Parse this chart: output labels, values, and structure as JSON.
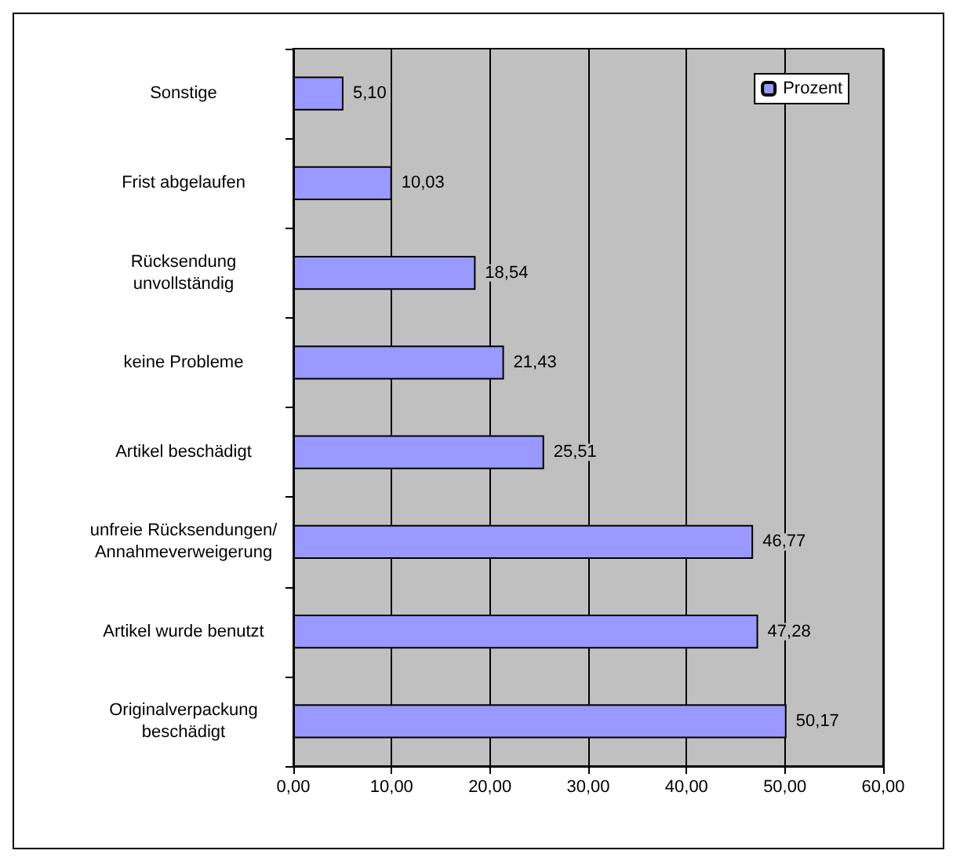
{
  "chart_data": {
    "type": "bar",
    "orientation": "horizontal",
    "categories": [
      "Sonstige",
      "Frist abgelaufen",
      "Rücksendung\nunvollständig",
      "keine Probleme",
      "Artikel beschädigt",
      "unfreie Rücksendungen/\nAnnahmeverweigerung",
      "Artikel wurde benutzt",
      "Originalverpackung\nbeschädigt"
    ],
    "series": [
      {
        "name": "Prozent",
        "color": "#9999ff",
        "values": [
          5.1,
          10.03,
          18.54,
          21.43,
          25.51,
          46.77,
          47.28,
          50.17
        ],
        "value_labels": [
          "5,10",
          "10,03",
          "18,54",
          "21,43",
          "25,51",
          "46,77",
          "47,28",
          "50,17"
        ]
      }
    ],
    "xlim": [
      0,
      60
    ],
    "xticks": [
      {
        "value": 0,
        "label": "0,00"
      },
      {
        "value": 10,
        "label": "10,00"
      },
      {
        "value": 20,
        "label": "20,00"
      },
      {
        "value": 30,
        "label": "30,00"
      },
      {
        "value": 40,
        "label": "40,00"
      },
      {
        "value": 50,
        "label": "50,00"
      },
      {
        "value": 60,
        "label": "60,00"
      }
    ],
    "grid": "x",
    "legend": "top right"
  }
}
